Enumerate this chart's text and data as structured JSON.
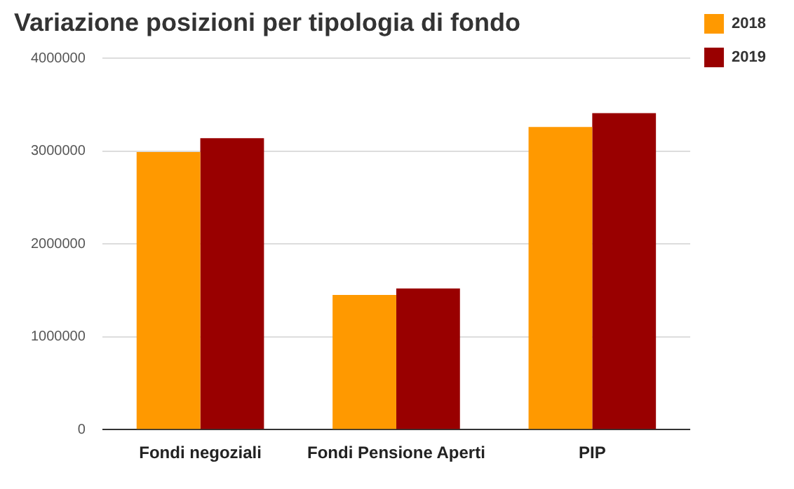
{
  "chart_data": {
    "type": "bar",
    "title": "Variazione posizioni per tipologia di fondo",
    "categories": [
      "Fondi negoziali",
      "Fondi Pensione Aperti",
      "PIP"
    ],
    "series": [
      {
        "name": "2018",
        "color": "#ff9900",
        "values": [
          2990000,
          1450000,
          3260000
        ]
      },
      {
        "name": "2019",
        "color": "#990000",
        "values": [
          3140000,
          1520000,
          3410000
        ]
      }
    ],
    "ylim": [
      0,
      4000000
    ],
    "yticks": [
      0,
      1000000,
      2000000,
      3000000,
      4000000
    ],
    "grid": "y",
    "legend": "top right"
  }
}
